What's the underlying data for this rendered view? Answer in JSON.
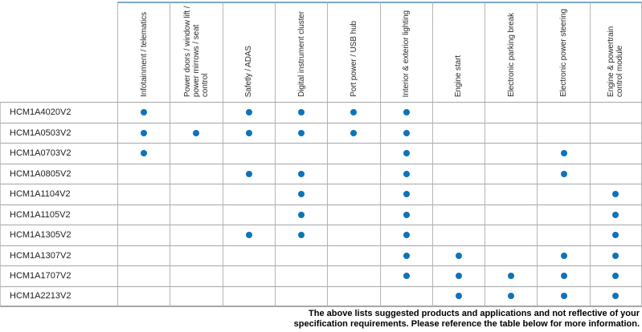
{
  "table": {
    "columns": [
      "Infotainment / telematics",
      "Power doors / window lift / power mirrows / seat control",
      "Safetly / ADAS",
      "Digital instrument cluster",
      "Port power / USB hub",
      "Interior & exterior lighting",
      "Engine start",
      "Electronic parking break",
      "Electronic power steering",
      "Engine & powertrain control module"
    ],
    "rows": [
      {
        "model": "HCM1A4020V2",
        "applications": [
          1,
          0,
          1,
          1,
          1,
          1,
          0,
          0,
          0,
          0
        ]
      },
      {
        "model": "HCM1A0503V2",
        "applications": [
          1,
          1,
          1,
          1,
          1,
          1,
          0,
          0,
          0,
          0
        ]
      },
      {
        "model": "HCM1A0703V2",
        "applications": [
          1,
          0,
          0,
          0,
          0,
          1,
          0,
          0,
          1,
          0
        ]
      },
      {
        "model": "HCM1A0805V2",
        "applications": [
          0,
          0,
          1,
          1,
          0,
          1,
          0,
          0,
          1,
          0
        ]
      },
      {
        "model": "HCM1A1104V2",
        "applications": [
          0,
          0,
          0,
          1,
          0,
          1,
          0,
          0,
          0,
          1
        ]
      },
      {
        "model": "HCM1A1105V2",
        "applications": [
          0,
          0,
          0,
          1,
          0,
          1,
          0,
          0,
          0,
          1
        ]
      },
      {
        "model": "HCM1A1305V2",
        "applications": [
          0,
          0,
          1,
          1,
          0,
          1,
          0,
          0,
          0,
          1
        ]
      },
      {
        "model": "HCM1A1307V2",
        "applications": [
          0,
          0,
          0,
          0,
          0,
          1,
          1,
          0,
          1,
          1
        ]
      },
      {
        "model": "HCM1A1707V2",
        "applications": [
          0,
          0,
          0,
          0,
          0,
          1,
          1,
          1,
          1,
          1
        ]
      },
      {
        "model": "HCM1A2213V2",
        "applications": [
          0,
          0,
          0,
          0,
          0,
          0,
          1,
          1,
          1,
          1
        ]
      }
    ]
  },
  "footer": {
    "line1": "The above lists suggested products and applications and not reflective of your",
    "line2": "specification requirements. Please reference the table below for more information."
  },
  "colors": {
    "dot": "#0d73ba",
    "header_top_line": "#7ca9c7",
    "grid_line": "#a6a6a6",
    "vertical_line": "#b5b5b5"
  }
}
